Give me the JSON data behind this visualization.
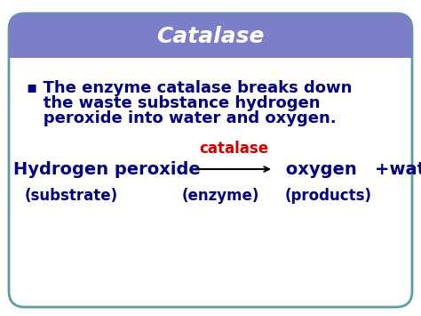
{
  "title": "Catalase",
  "title_color": "#ffffff",
  "title_bg_color": "#7b7ec8",
  "header_line_color": "#ffffff",
  "card_bg_color": "#ffffff",
  "card_border_color": "#5a9ea0",
  "bullet_text_line1": "▪ The enzyme catalase breaks down",
  "bullet_text_line2": "  the waste substance hydrogen",
  "bullet_text_line3": "  peroxide into water and oxygen.",
  "bullet_color": "#000080",
  "eq_left": "Hydrogen peroxide",
  "eq_left_color": "#000080",
  "eq_catalyst": "catalase",
  "eq_catalyst_color": "#cc0000",
  "eq_right": " oxygen   +water",
  "eq_right_color": "#000080",
  "label_substrate": "(substrate)",
  "label_enzyme": "(enzyme)",
  "label_products": "(products)",
  "label_color": "#000080",
  "arrow_color": "#000000",
  "bg_color": "#ffffff"
}
